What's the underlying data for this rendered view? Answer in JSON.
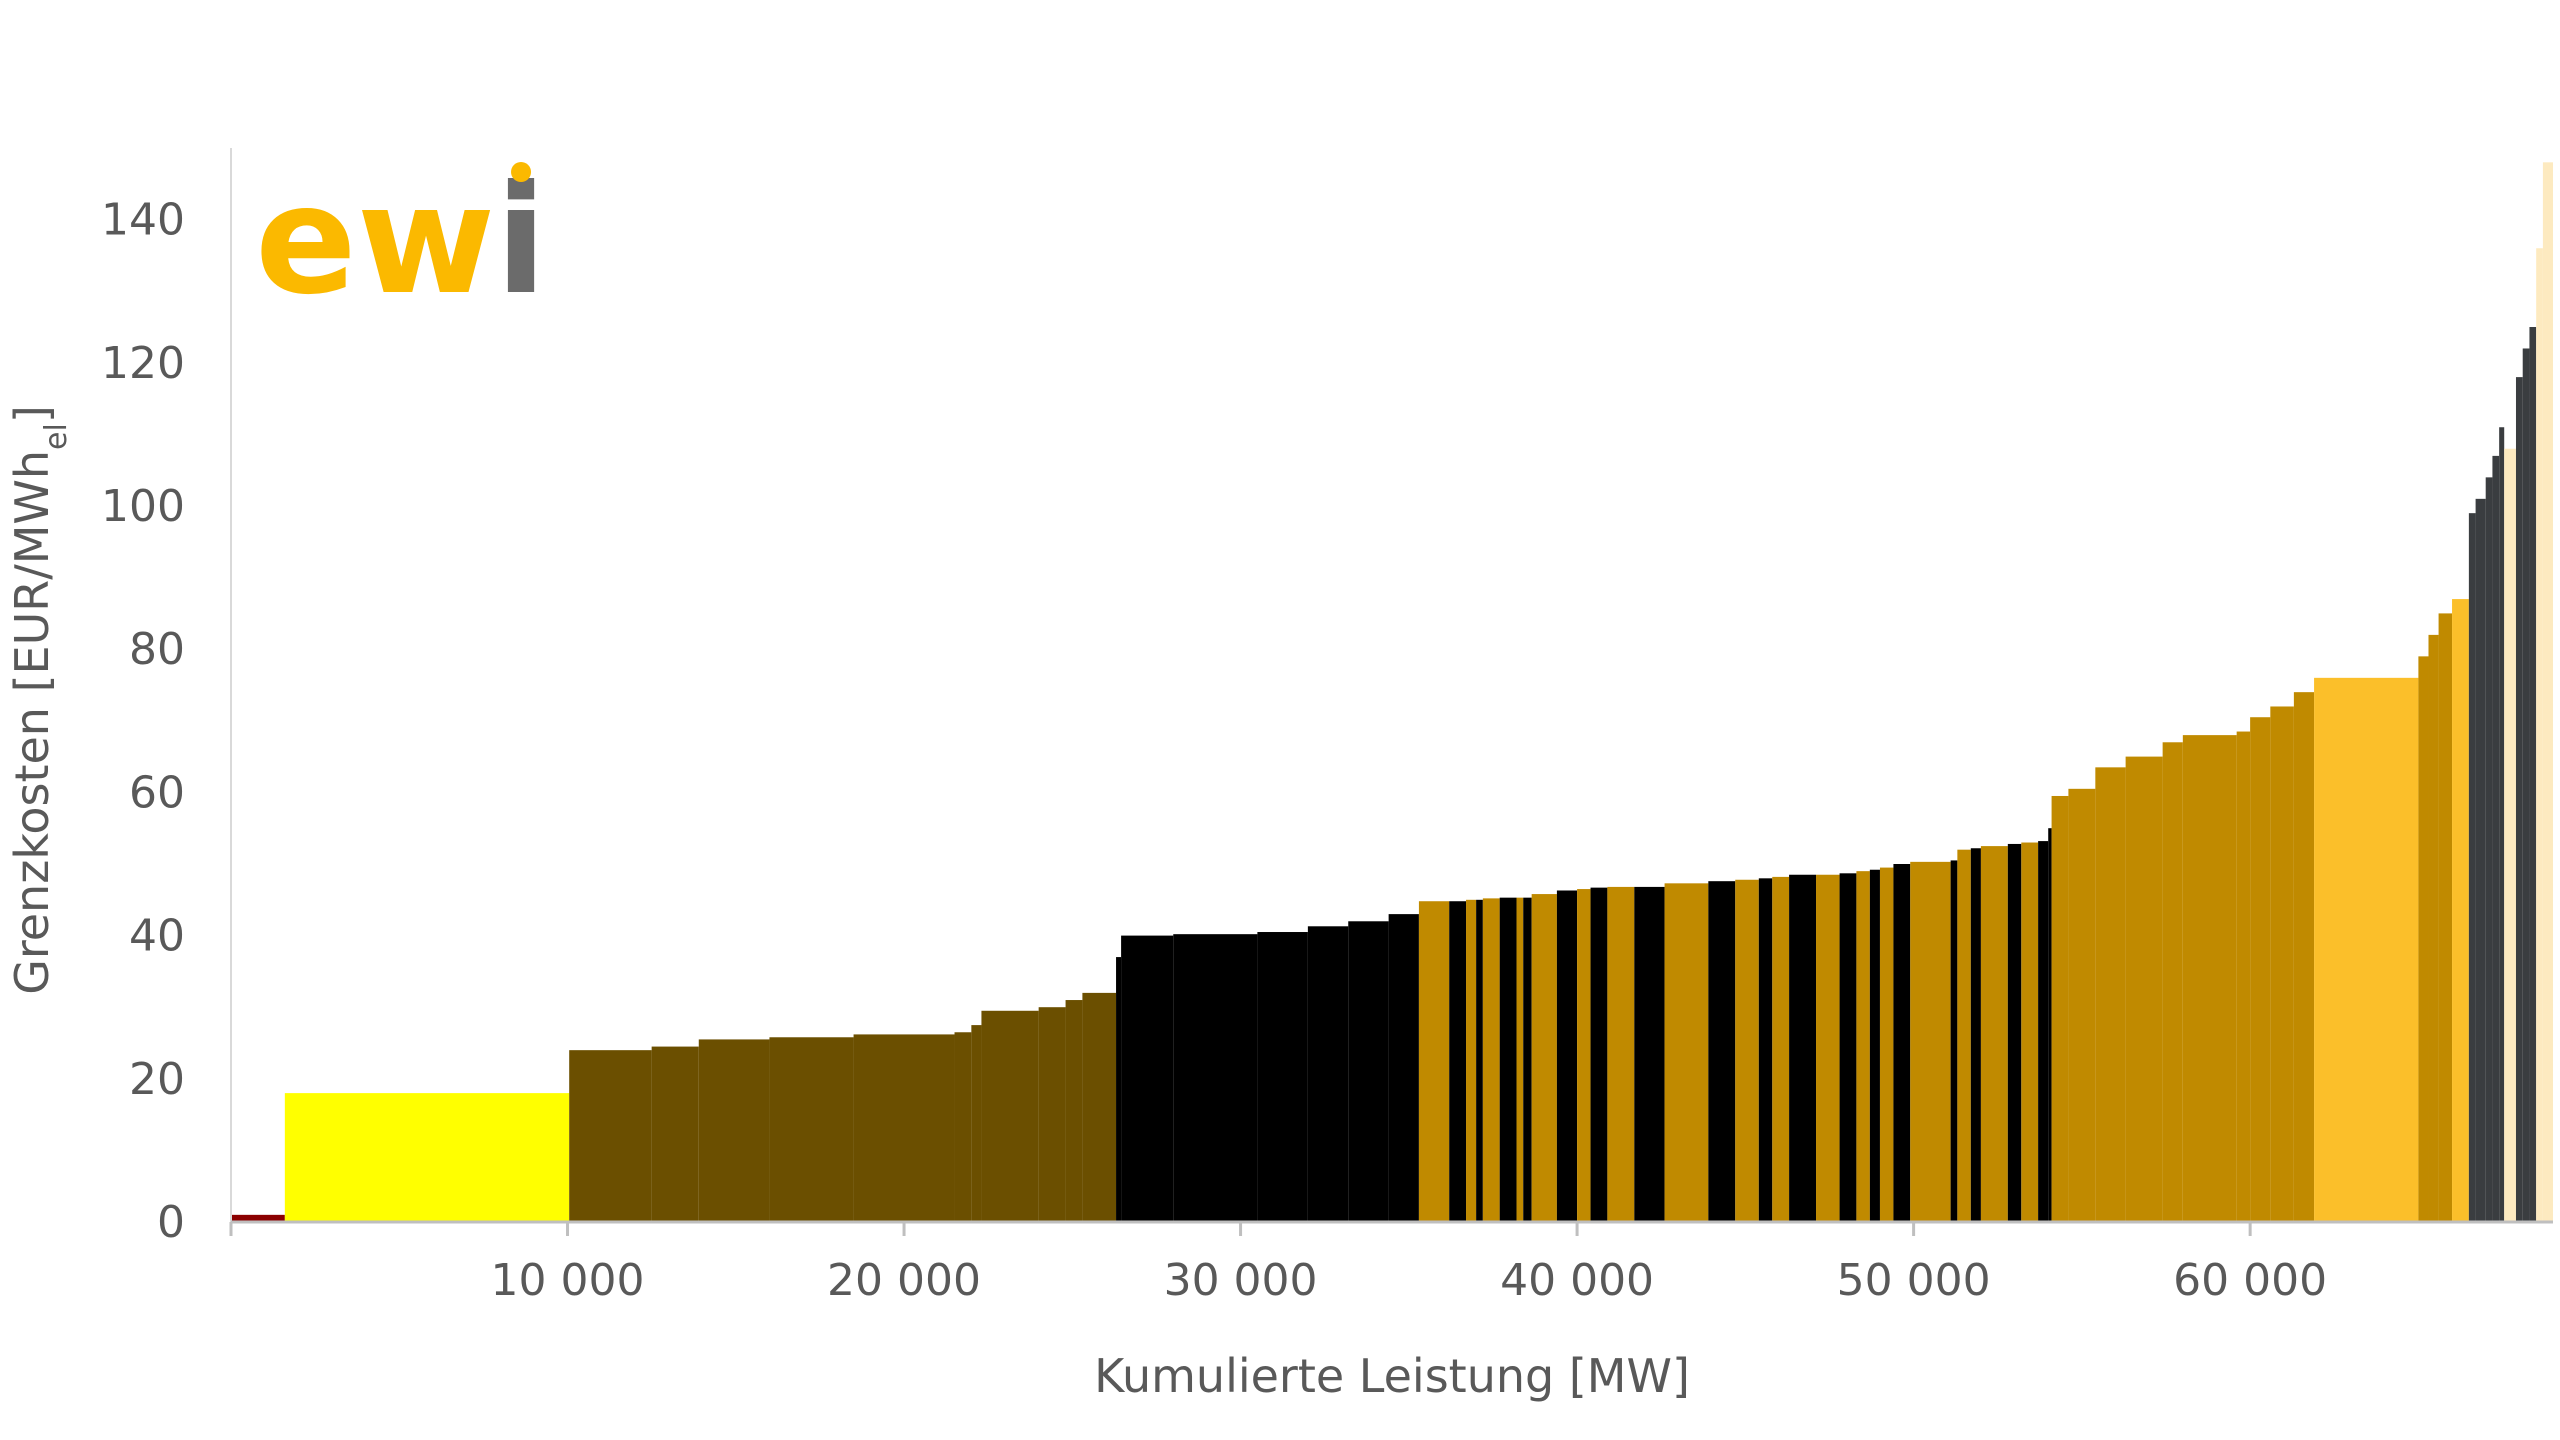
{
  "logo": {
    "text": "ewi",
    "color_main": "#fbb900",
    "color_dot": "#fbb900",
    "color_i": "#6b6b6b"
  },
  "chart_data": {
    "type": "bar",
    "subtype": "merit-order step chart",
    "title": "",
    "xlabel": "Kumulierte Leistung [MW]",
    "ylabel": "Grenzkosten [EUR/MWh",
    "ylabel_sub": "el",
    "ylabel_end": "]",
    "xlim": [
      0,
      69000
    ],
    "ylim": [
      0,
      150
    ],
    "grid": false,
    "legend": "none",
    "xticks": [
      {
        "value": 10000,
        "label": "10 000"
      },
      {
        "value": 20000,
        "label": "20 000"
      },
      {
        "value": 30000,
        "label": "30 000"
      },
      {
        "value": 40000,
        "label": "40 000"
      },
      {
        "value": 50000,
        "label": "50 000"
      },
      {
        "value": 60000,
        "label": "60 000"
      }
    ],
    "yticks": [
      {
        "value": 0,
        "label": "0"
      },
      {
        "value": 20,
        "label": "20"
      },
      {
        "value": 40,
        "label": "40"
      },
      {
        "value": 60,
        "label": "60"
      },
      {
        "value": 80,
        "label": "80"
      },
      {
        "value": 100,
        "label": "100"
      },
      {
        "value": 120,
        "label": "120"
      },
      {
        "value": 140,
        "label": "140"
      }
    ],
    "blocks": [
      {
        "x0": 0,
        "x1": 1600,
        "y": 1,
        "color": "#8b0000"
      },
      {
        "x0": 1600,
        "x1": 10050,
        "y": 18,
        "color": "#ffff00"
      },
      {
        "x0": 10050,
        "x1": 12500,
        "y": 24,
        "color": "#6b4f00"
      },
      {
        "x0": 12500,
        "x1": 13900,
        "y": 24.5,
        "color": "#6b4f00"
      },
      {
        "x0": 13900,
        "x1": 16000,
        "y": 25.5,
        "color": "#6b4f00"
      },
      {
        "x0": 16000,
        "x1": 18500,
        "y": 25.8,
        "color": "#6b4f00"
      },
      {
        "x0": 18500,
        "x1": 21500,
        "y": 26.2,
        "color": "#6b4f00"
      },
      {
        "x0": 21500,
        "x1": 22000,
        "y": 26.5,
        "color": "#6b4f00"
      },
      {
        "x0": 22000,
        "x1": 22300,
        "y": 27.5,
        "color": "#6b4f00"
      },
      {
        "x0": 22300,
        "x1": 24000,
        "y": 29.5,
        "color": "#6b4f00"
      },
      {
        "x0": 24000,
        "x1": 24800,
        "y": 30,
        "color": "#6b4f00"
      },
      {
        "x0": 24800,
        "x1": 25300,
        "y": 31,
        "color": "#6b4f00"
      },
      {
        "x0": 25300,
        "x1": 26300,
        "y": 32,
        "color": "#6b4f00"
      },
      {
        "x0": 26300,
        "x1": 26450,
        "y": 37,
        "color": "#000000"
      },
      {
        "x0": 26450,
        "x1": 28000,
        "y": 40,
        "color": "#000000"
      },
      {
        "x0": 28000,
        "x1": 30500,
        "y": 40.2,
        "color": "#000000"
      },
      {
        "x0": 30500,
        "x1": 32000,
        "y": 40.5,
        "color": "#000000"
      },
      {
        "x0": 32000,
        "x1": 33200,
        "y": 41.3,
        "color": "#000000"
      },
      {
        "x0": 33200,
        "x1": 34400,
        "y": 42,
        "color": "#000000"
      },
      {
        "x0": 34400,
        "x1": 35300,
        "y": 43,
        "color": "#000000"
      },
      {
        "x0": 35300,
        "x1": 36200,
        "y": 44.8,
        "color": "#c08a00"
      },
      {
        "x0": 36200,
        "x1": 36700,
        "y": 44.8,
        "color": "#000000"
      },
      {
        "x0": 36700,
        "x1": 37000,
        "y": 45,
        "color": "#c08a00"
      },
      {
        "x0": 37000,
        "x1": 37200,
        "y": 45,
        "color": "#000000"
      },
      {
        "x0": 37200,
        "x1": 37700,
        "y": 45.2,
        "color": "#c08a00"
      },
      {
        "x0": 37700,
        "x1": 38200,
        "y": 45.3,
        "color": "#000000"
      },
      {
        "x0": 38200,
        "x1": 38400,
        "y": 45.3,
        "color": "#c08a00"
      },
      {
        "x0": 38400,
        "x1": 38650,
        "y": 45.3,
        "color": "#000000"
      },
      {
        "x0": 38650,
        "x1": 39400,
        "y": 45.8,
        "color": "#c08a00"
      },
      {
        "x0": 39400,
        "x1": 40000,
        "y": 46.3,
        "color": "#000000"
      },
      {
        "x0": 40000,
        "x1": 40400,
        "y": 46.5,
        "color": "#c08a00"
      },
      {
        "x0": 40400,
        "x1": 40900,
        "y": 46.7,
        "color": "#000000"
      },
      {
        "x0": 40900,
        "x1": 41700,
        "y": 46.8,
        "color": "#c08a00"
      },
      {
        "x0": 41700,
        "x1": 42600,
        "y": 46.8,
        "color": "#000000"
      },
      {
        "x0": 42600,
        "x1": 43900,
        "y": 47.3,
        "color": "#c08a00"
      },
      {
        "x0": 43900,
        "x1": 44700,
        "y": 47.6,
        "color": "#000000"
      },
      {
        "x0": 44700,
        "x1": 45400,
        "y": 47.8,
        "color": "#c08a00"
      },
      {
        "x0": 45400,
        "x1": 45800,
        "y": 48,
        "color": "#000000"
      },
      {
        "x0": 45800,
        "x1": 46300,
        "y": 48.2,
        "color": "#c08a00"
      },
      {
        "x0": 46300,
        "x1": 47100,
        "y": 48.5,
        "color": "#000000"
      },
      {
        "x0": 47100,
        "x1": 47800,
        "y": 48.5,
        "color": "#c08a00"
      },
      {
        "x0": 47800,
        "x1": 48300,
        "y": 48.7,
        "color": "#000000"
      },
      {
        "x0": 48300,
        "x1": 48700,
        "y": 49,
        "color": "#c08a00"
      },
      {
        "x0": 48700,
        "x1": 49000,
        "y": 49.2,
        "color": "#000000"
      },
      {
        "x0": 49000,
        "x1": 49400,
        "y": 49.5,
        "color": "#c08a00"
      },
      {
        "x0": 49400,
        "x1": 49900,
        "y": 50,
        "color": "#000000"
      },
      {
        "x0": 49900,
        "x1": 51100,
        "y": 50.3,
        "color": "#c08a00"
      },
      {
        "x0": 51100,
        "x1": 51300,
        "y": 50.5,
        "color": "#000000"
      },
      {
        "x0": 51300,
        "x1": 51700,
        "y": 52,
        "color": "#c08a00"
      },
      {
        "x0": 51700,
        "x1": 52000,
        "y": 52.2,
        "color": "#000000"
      },
      {
        "x0": 52000,
        "x1": 52800,
        "y": 52.5,
        "color": "#c08a00"
      },
      {
        "x0": 52800,
        "x1": 53200,
        "y": 52.8,
        "color": "#000000"
      },
      {
        "x0": 53200,
        "x1": 53700,
        "y": 53,
        "color": "#c08a00"
      },
      {
        "x0": 53700,
        "x1": 54000,
        "y": 53.2,
        "color": "#000000"
      },
      {
        "x0": 54000,
        "x1": 54100,
        "y": 55,
        "color": "#000000"
      },
      {
        "x0": 54100,
        "x1": 54600,
        "y": 59.5,
        "color": "#c08a00"
      },
      {
        "x0": 54600,
        "x1": 55400,
        "y": 60.5,
        "color": "#c08a00"
      },
      {
        "x0": 55400,
        "x1": 56300,
        "y": 63.5,
        "color": "#c08a00"
      },
      {
        "x0": 56300,
        "x1": 57400,
        "y": 65,
        "color": "#c08a00"
      },
      {
        "x0": 57400,
        "x1": 58000,
        "y": 67,
        "color": "#c08a00"
      },
      {
        "x0": 58000,
        "x1": 59600,
        "y": 68,
        "color": "#c08a00"
      },
      {
        "x0": 59600,
        "x1": 60000,
        "y": 68.5,
        "color": "#c08a00"
      },
      {
        "x0": 60000,
        "x1": 60600,
        "y": 70.5,
        "color": "#c08a00"
      },
      {
        "x0": 60600,
        "x1": 61300,
        "y": 72,
        "color": "#c08a00"
      },
      {
        "x0": 61300,
        "x1": 61900,
        "y": 74,
        "color": "#c08a00"
      },
      {
        "x0": 61900,
        "x1": 65000,
        "y": 76,
        "color": "#fbbf2a"
      },
      {
        "x0": 65000,
        "x1": 65300,
        "y": 79,
        "color": "#c08a00"
      },
      {
        "x0": 65300,
        "x1": 65600,
        "y": 82,
        "color": "#c08a00"
      },
      {
        "x0": 65600,
        "x1": 66000,
        "y": 85,
        "color": "#c08a00"
      },
      {
        "x0": 66000,
        "x1": 66500,
        "y": 87,
        "color": "#fbbf2a"
      },
      {
        "x0": 66500,
        "x1": 66700,
        "y": 99,
        "color": "#3a3d40"
      },
      {
        "x0": 66700,
        "x1": 67000,
        "y": 101,
        "color": "#3a3d40"
      },
      {
        "x0": 67000,
        "x1": 67200,
        "y": 104,
        "color": "#3a3d40"
      },
      {
        "x0": 67200,
        "x1": 67400,
        "y": 107,
        "color": "#3a3d40"
      },
      {
        "x0": 67400,
        "x1": 67550,
        "y": 111,
        "color": "#3a3d40"
      },
      {
        "x0": 67550,
        "x1": 67900,
        "y": 108,
        "color": "#fdeac0"
      },
      {
        "x0": 67900,
        "x1": 68100,
        "y": 118,
        "color": "#3a3d40"
      },
      {
        "x0": 68100,
        "x1": 68300,
        "y": 122,
        "color": "#3a3d40"
      },
      {
        "x0": 68300,
        "x1": 68500,
        "y": 125,
        "color": "#3a3d40"
      },
      {
        "x0": 68500,
        "x1": 68700,
        "y": 136,
        "color": "#fdeac0"
      },
      {
        "x0": 68700,
        "x1": 69000,
        "y": 148,
        "color": "#fdeac0"
      }
    ]
  }
}
